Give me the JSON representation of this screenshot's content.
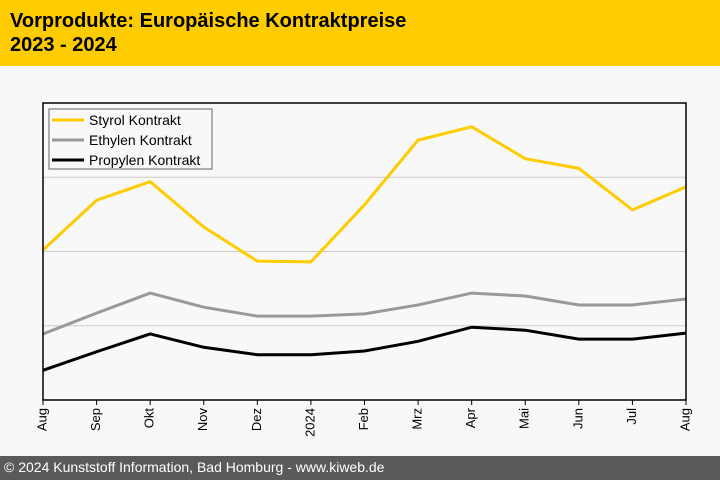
{
  "header": {
    "title_line1": "Vorprodukte: Europäische Kontraktpreise",
    "title_line2": "2023 - 2024"
  },
  "footer": {
    "text": "© 2024 Kunststoff Information, Bad Homburg - www.kiweb.de"
  },
  "colors": {
    "header_bg": "#ffcc00",
    "footer_bg": "#5a5a5a",
    "styrol": "#ffcc00",
    "ethylen": "#999999",
    "propylen": "#000000"
  },
  "chart_data": {
    "type": "line",
    "title": "Vorprodukte: Europäische Kontraktpreise 2023 - 2024",
    "xlabel": "",
    "ylabel": "",
    "y_units_note": "relative index (no y-axis labels shown)",
    "categories": [
      "Aug",
      "Sep",
      "Okt",
      "Nov",
      "Dez",
      "2024",
      "Feb",
      "Mrz",
      "Apr",
      "Mai",
      "Jun",
      "Jul",
      "Aug"
    ],
    "ylim": [
      0,
      400
    ],
    "y_gridlines": [
      100,
      200,
      300
    ],
    "grid": true,
    "legend_position": "top-left",
    "series": [
      {
        "name": "Styrol Kontrakt",
        "color": "#ffcc00",
        "values": [
          202,
          269,
          294,
          233,
          187,
          186,
          263,
          350,
          368,
          325,
          312,
          256,
          287
        ]
      },
      {
        "name": "Ethylen Kontrakt",
        "color": "#999999",
        "values": [
          89,
          117,
          144,
          125,
          113,
          113,
          116,
          128,
          144,
          140,
          128,
          128,
          136
        ]
      },
      {
        "name": "Propylen Kontrakt",
        "color": "#000000",
        "values": [
          40,
          65,
          89,
          71,
          61,
          61,
          66,
          79,
          98,
          94,
          82,
          82,
          90
        ]
      }
    ]
  }
}
